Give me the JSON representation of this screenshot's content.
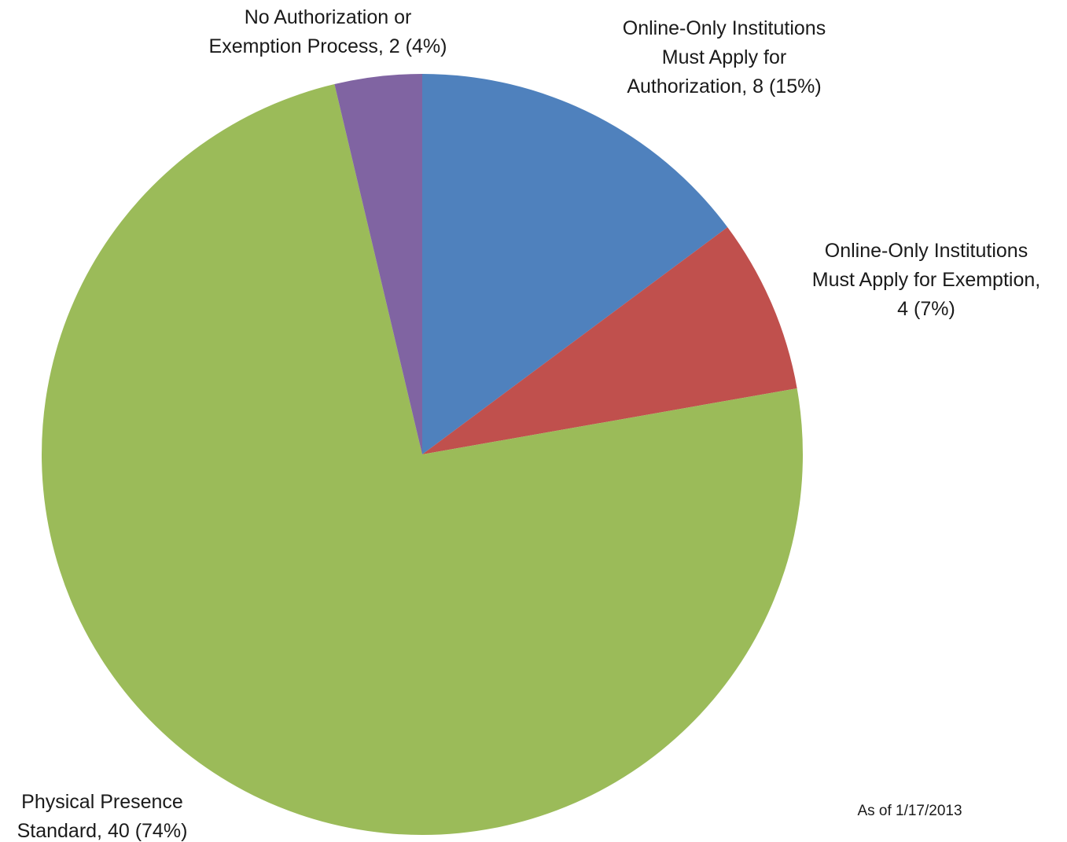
{
  "chart_data": {
    "type": "pie",
    "title": "",
    "slices": [
      {
        "label": "Online-Only Institutions Must Apply for Authorization",
        "value": 8,
        "percent": 15,
        "color": "#4f81bd",
        "label_lines": [
          "Online-Only Institutions",
          "Must Apply for",
          "Authorization, 8 (15%)"
        ]
      },
      {
        "label": "Online-Only Institutions Must Apply for Exemption",
        "value": 4,
        "percent": 7,
        "color": "#c0504d",
        "label_lines": [
          "Online-Only Institutions",
          "Must Apply for Exemption,",
          "4 (7%)"
        ]
      },
      {
        "label": "Physical Presence Standard",
        "value": 40,
        "percent": 74,
        "color": "#9bbb59",
        "label_lines": [
          "Physical Presence",
          "Standard, 40 (74%)"
        ]
      },
      {
        "label": "No Authorization or Exemption Process",
        "value": 2,
        "percent": 4,
        "color": "#8064a2",
        "label_lines": [
          "No Authorization or",
          "Exemption Process, 2 (4%)"
        ]
      }
    ],
    "legend": "none",
    "start_angle": "12 o'clock",
    "direction": "clockwise"
  },
  "note": "As of 1/17/2013"
}
